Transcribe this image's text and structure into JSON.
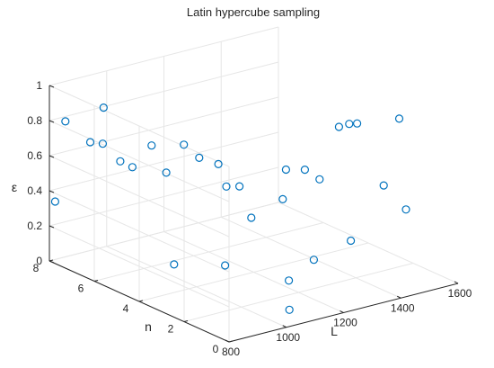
{
  "chart_data": {
    "type": "scatter",
    "title": "Latin hypercube sampling",
    "xlabel": "L",
    "ylabel": "n",
    "zlabel": "ε",
    "xlim": [
      800,
      1600
    ],
    "ylim": [
      0,
      8
    ],
    "zlim": [
      0,
      1
    ],
    "xticks": [
      "800",
      "1000",
      "1200",
      "1400",
      "1600"
    ],
    "yticks": [
      "0",
      "2",
      "4",
      "6",
      "8"
    ],
    "zticks": [
      "0",
      "0.2",
      "0.4",
      "0.6",
      "0.8",
      "1"
    ],
    "grid": true,
    "marker": "circle",
    "color": "#0072BD",
    "points": [
      {
        "x": 820,
        "y": 8.0,
        "z": 0.33
      },
      {
        "x": 880,
        "y": 7.2,
        "z": 0.69
      },
      {
        "x": 840,
        "y": 7.8,
        "z": 0.79
      },
      {
        "x": 900,
        "y": 6.9,
        "z": 0.69
      },
      {
        "x": 950,
        "y": 7.5,
        "z": 0.84
      },
      {
        "x": 930,
        "y": 6.5,
        "z": 0.6
      },
      {
        "x": 1000,
        "y": 6.0,
        "z": 0.69
      },
      {
        "x": 1050,
        "y": 5.2,
        "z": 0.72
      },
      {
        "x": 1020,
        "y": 5.6,
        "z": 0.55
      },
      {
        "x": 1080,
        "y": 4.9,
        "z": 0.65
      },
      {
        "x": 1100,
        "y": 4.3,
        "z": 0.64
      },
      {
        "x": 980,
        "y": 6.6,
        "z": 0.54
      },
      {
        "x": 1120,
        "y": 4.2,
        "z": 0.51
      },
      {
        "x": 1150,
        "y": 4.0,
        "z": 0.51
      },
      {
        "x": 1250,
        "y": 3.2,
        "z": 0.61
      },
      {
        "x": 1300,
        "y": 3.0,
        "z": 0.6
      },
      {
        "x": 1160,
        "y": 3.6,
        "z": 0.35
      },
      {
        "x": 1270,
        "y": 3.6,
        "z": 0.41
      },
      {
        "x": 1320,
        "y": 2.6,
        "z": 0.56
      },
      {
        "x": 1380,
        "y": 2.5,
        "z": 0.84
      },
      {
        "x": 1400,
        "y": 2.3,
        "z": 0.86
      },
      {
        "x": 1420,
        "y": 2.2,
        "z": 0.86
      },
      {
        "x": 1520,
        "y": 1.6,
        "z": 0.88
      },
      {
        "x": 1450,
        "y": 1.4,
        "z": 0.54
      },
      {
        "x": 1520,
        "y": 1.3,
        "z": 0.38
      },
      {
        "x": 1300,
        "y": 2.6,
        "z": 0.11
      },
      {
        "x": 1390,
        "y": 2.1,
        "z": 0.21
      },
      {
        "x": 1000,
        "y": 5.0,
        "z": 0.07
      },
      {
        "x": 1100,
        "y": 4.0,
        "z": 0.08
      },
      {
        "x": 1150,
        "y": 1.8,
        "z": 0.1
      },
      {
        "x": 1050,
        "y": 0.5,
        "z": 0.05
      }
    ]
  }
}
